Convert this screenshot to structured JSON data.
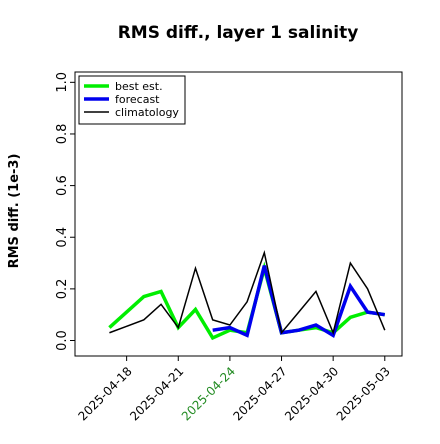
{
  "chart_data": {
    "type": "line",
    "title": "RMS diff., layer 1 salinity",
    "ylabel": "RMS diff. (1e-3)",
    "x": [
      "2025-04-17",
      "2025-04-18",
      "2025-04-19",
      "2025-04-20",
      "2025-04-21",
      "2025-04-22",
      "2025-04-23",
      "2025-04-24",
      "2025-04-25",
      "2025-04-26",
      "2025-04-27",
      "2025-04-28",
      "2025-04-29",
      "2025-04-30",
      "2025-05-01",
      "2025-05-02",
      "2025-05-03"
    ],
    "series": [
      {
        "name": "best est.",
        "color": "#00ee00",
        "width": 3.5,
        "values": [
          0.05,
          0.11,
          0.17,
          0.19,
          0.05,
          0.12,
          0.01,
          0.04,
          0.03,
          0.28,
          0.03,
          0.04,
          0.05,
          0.03,
          0.09,
          0.11,
          0.1
        ]
      },
      {
        "name": "forecast",
        "color": "#0000ee",
        "width": 3.5,
        "values": [
          null,
          null,
          null,
          null,
          null,
          null,
          0.04,
          0.05,
          0.02,
          0.29,
          0.03,
          0.04,
          0.06,
          0.02,
          0.21,
          0.11,
          0.1
        ]
      },
      {
        "name": "climatology",
        "color": "#000000",
        "width": 1.5,
        "values": [
          0.03,
          0.055,
          0.08,
          0.14,
          0.05,
          0.28,
          0.08,
          0.06,
          0.15,
          0.34,
          0.03,
          0.11,
          0.19,
          0.03,
          0.3,
          0.2,
          0.04
        ]
      }
    ],
    "xlim": [
      "2025-04-15",
      "2025-05-04"
    ],
    "xticks": [
      "2025-04-18",
      "2025-04-21",
      "2025-04-24",
      "2025-04-27",
      "2025-04-30",
      "2025-05-03"
    ],
    "xtick_highlight_index": 2,
    "xtick_highlight_color": "#228b22",
    "ylim": [
      -0.06,
      1.04
    ],
    "yticks": [
      {
        "value": 0,
        "label": "0.0"
      },
      0.2,
      0.4,
      0.6,
      0.8,
      {
        "value": 1,
        "label": "1.0"
      }
    ],
    "legend": "upper left"
  }
}
